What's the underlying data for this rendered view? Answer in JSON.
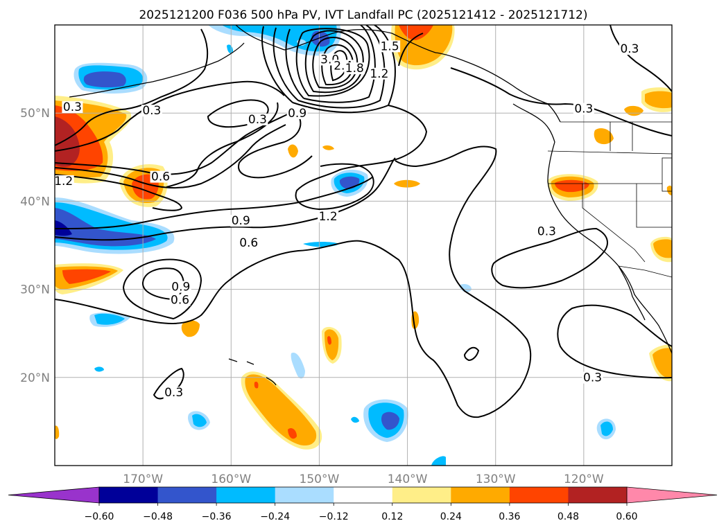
{
  "title": "2025121200 F036 500 hPa PV, IVT Landfall PC (2025121412 - 2025121712)",
  "map": {
    "lon_range": [
      -180,
      -110
    ],
    "lat_range": [
      10,
      60
    ],
    "lon_ticks": [
      {
        "lon": -170,
        "label": "170°W"
      },
      {
        "lon": -160,
        "label": "160°W"
      },
      {
        "lon": -150,
        "label": "150°W"
      },
      {
        "lon": -140,
        "label": "140°W"
      },
      {
        "lon": -130,
        "label": "130°W"
      },
      {
        "lon": -120,
        "label": "120°W"
      }
    ],
    "lat_ticks": [
      {
        "lat": 20,
        "label": "20°N"
      },
      {
        "lat": 30,
        "label": "30°N"
      },
      {
        "lat": 40,
        "label": "40°N"
      },
      {
        "lat": 50,
        "label": "50°N"
      }
    ]
  },
  "contour_labels": [
    {
      "text": "0.3",
      "lon": -178,
      "lat": 50.4
    },
    {
      "text": "0.3",
      "lon": -169,
      "lat": 50.0
    },
    {
      "text": "0.3",
      "lon": -157,
      "lat": 49.0
    },
    {
      "text": "0.9",
      "lon": -152.5,
      "lat": 49.7
    },
    {
      "text": "3.0",
      "lon": -148.8,
      "lat": 55.8
    },
    {
      "text": "2.4",
      "lon": -147.3,
      "lat": 55.1
    },
    {
      "text": "1.8",
      "lon": -146.0,
      "lat": 54.8
    },
    {
      "text": "1.2",
      "lon": -143.2,
      "lat": 54.2
    },
    {
      "text": "1.5",
      "lon": -142.0,
      "lat": 57.3
    },
    {
      "text": "0.6",
      "lon": -168.0,
      "lat": 42.5
    },
    {
      "text": "1.2",
      "lon": -179.0,
      "lat": 42.0
    },
    {
      "text": "0.9",
      "lon": -158.9,
      "lat": 37.5
    },
    {
      "text": "0.6",
      "lon": -158.0,
      "lat": 35.0
    },
    {
      "text": "1.2",
      "lon": -149.0,
      "lat": 38.0
    },
    {
      "text": "0.9",
      "lon": -165.7,
      "lat": 30.0
    },
    {
      "text": "0.6",
      "lon": -165.8,
      "lat": 28.5
    },
    {
      "text": "0.3",
      "lon": -166.5,
      "lat": 18.0
    },
    {
      "text": "0.3",
      "lon": -124.2,
      "lat": 36.3
    },
    {
      "text": "0.3",
      "lon": -120.0,
      "lat": 50.2
    },
    {
      "text": "0.3",
      "lon": -119.0,
      "lat": 19.7
    },
    {
      "text": "0.3",
      "lon": -114.8,
      "lat": 57.0
    }
  ],
  "colorbar": {
    "levels": [
      -0.6,
      -0.48,
      -0.36,
      -0.24,
      -0.12,
      0.12,
      0.24,
      0.36,
      0.48,
      0.6
    ],
    "tick_labels": [
      "−0.60",
      "−0.48",
      "−0.36",
      "−0.24",
      "−0.12",
      "0.12",
      "0.24",
      "0.36",
      "0.48",
      "0.60"
    ],
    "under_color": "#9933cc",
    "over_color": "#ff88aa",
    "colors": [
      "#000099",
      "#3355cc",
      "#00bbff",
      "#aaddff",
      "#ffffff",
      "#ffee88",
      "#ffaa00",
      "#ff4400",
      "#b22222"
    ]
  },
  "colors": {
    "dark_red": "#b22222",
    "red_orange": "#ff4400",
    "orange": "#ffaa00",
    "pale_yellow": "#ffee88",
    "pale_blue": "#aaddff",
    "sky_blue": "#00bbff",
    "royal_blue": "#3355cc",
    "navy": "#000099"
  }
}
